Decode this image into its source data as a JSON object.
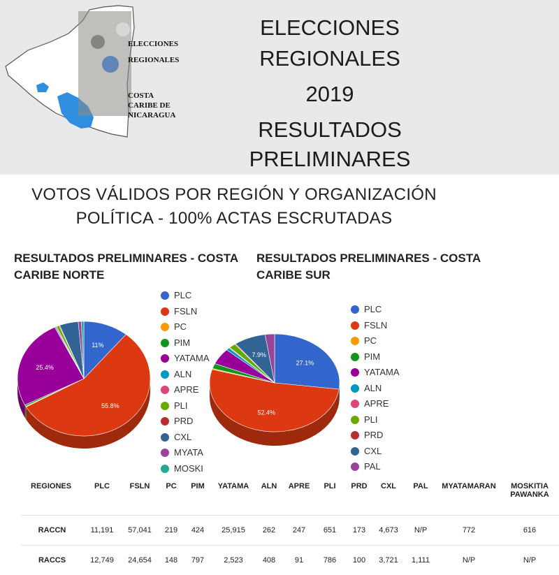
{
  "header": {
    "title_lines": [
      "ELECCIONES",
      "REGIONALES",
      "2019",
      "RESULTADOS",
      "PRELIMINARES"
    ],
    "logo_text": [
      "ELECCIONES",
      "REGIONALES",
      "COSTA",
      "CARIBE DE",
      "NICARAGUA"
    ]
  },
  "subtitle": [
    "VOTOS VÁLIDOS POR REGIÓN Y ORGANIZACIÓN",
    "POLÍTICA - 100% ACTAS ESCRUTADAS"
  ],
  "chart_data": [
    {
      "type": "pie",
      "title": "RESULTADOS PRELIMINARES - COSTA CARIBE NORTE",
      "title_lines": [
        "RESULTADOS PRELIMINARES - COSTA",
        "CARIBE NORTE"
      ],
      "categories": [
        "PLC",
        "FSLN",
        "PC",
        "PIM",
        "YATAMA",
        "ALN",
        "APRE",
        "PLI",
        "PRD",
        "CXL",
        "MYATA",
        "MOSKI"
      ],
      "values": [
        11191,
        57041,
        219,
        424,
        25915,
        262,
        247,
        651,
        173,
        4673,
        772,
        616
      ],
      "data_labels": [
        "11%",
        "55.8%",
        "",
        "",
        "25.4%",
        "",
        "",
        "",
        "",
        "",
        "",
        ""
      ],
      "colors": [
        "#3366cc",
        "#dc3912",
        "#ff9900",
        "#109618",
        "#990099",
        "#0099c6",
        "#dd4477",
        "#66aa00",
        "#b82e2e",
        "#316395",
        "#994499",
        "#22aa99"
      ],
      "legend_position": "right"
    },
    {
      "type": "pie",
      "title": "RESULTADOS PRELIMINARES - COSTA CARIBE SUR",
      "title_lines": [
        "RESULTADOS PRELIMINARES - COSTA",
        "CARIBE SUR"
      ],
      "categories": [
        "PLC",
        "FSLN",
        "PC",
        "PIM",
        "YATAMA",
        "ALN",
        "APRE",
        "PLI",
        "PRD",
        "CXL",
        "PAL"
      ],
      "values": [
        12749,
        24654,
        148,
        797,
        2523,
        408,
        91,
        786,
        100,
        3721,
        1111
      ],
      "data_labels": [
        "27.1%",
        "52.4%",
        "",
        "",
        "",
        "",
        "",
        "",
        "",
        "7.9%",
        ""
      ],
      "colors": [
        "#3366cc",
        "#dc3912",
        "#ff9900",
        "#109618",
        "#990099",
        "#0099c6",
        "#dd4477",
        "#66aa00",
        "#b82e2e",
        "#316395",
        "#994499"
      ],
      "legend_position": "right"
    }
  ],
  "table": {
    "headers": [
      "REGIONES",
      "PLC",
      "FSLN",
      "PC",
      "PIM",
      "YATAMA",
      "ALN",
      "APRE",
      "PLI",
      "PRD",
      "CXL",
      "PAL",
      "MYATAMARAN",
      "MOSKITIA PAWANKA"
    ],
    "rows": [
      [
        "RACCN",
        "11,191",
        "57,041",
        "219",
        "424",
        "25,915",
        "262",
        "247",
        "651",
        "173",
        "4,673",
        "N/P",
        "772",
        "616"
      ],
      [
        "RACCS",
        "12,749",
        "24,654",
        "148",
        "797",
        "2,523",
        "408",
        "91",
        "786",
        "100",
        "3,721",
        "1,111",
        "N/P",
        "N/P"
      ]
    ]
  }
}
